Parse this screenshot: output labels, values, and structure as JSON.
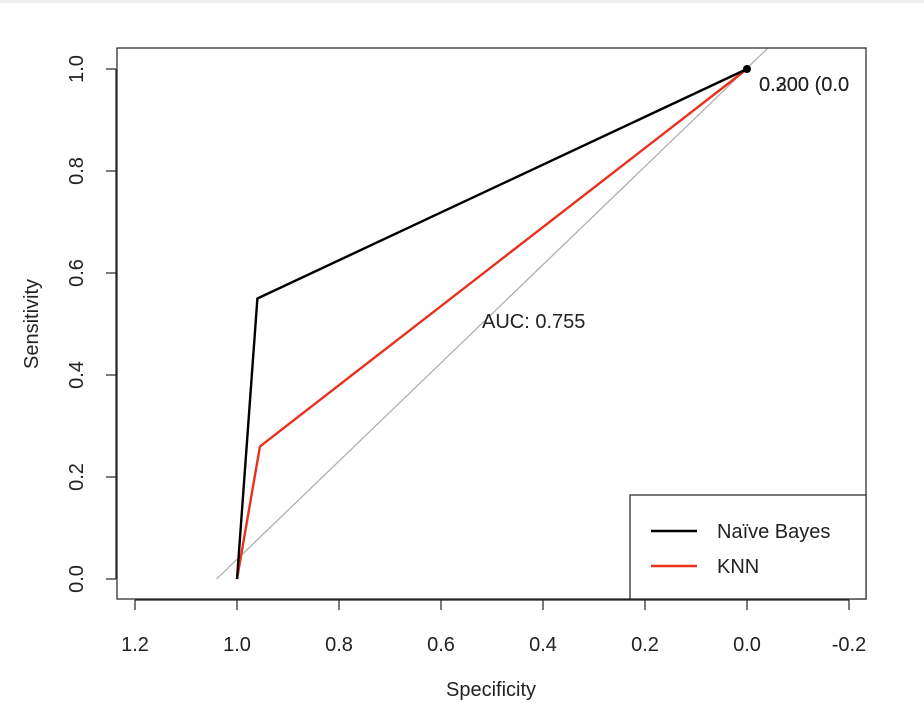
{
  "chart_data": {
    "type": "line",
    "title": "",
    "xlabel": "Specificity",
    "ylabel": "Sensitivity",
    "xlim": [
      1.2,
      -0.2
    ],
    "ylim": [
      0.0,
      1.0
    ],
    "x_reversed": true,
    "xticks": [
      1.2,
      1.0,
      0.8,
      0.6,
      0.4,
      0.2,
      0.0,
      -0.2
    ],
    "xtick_labels": [
      "1.2",
      "1.0",
      "0.8",
      "0.6",
      "0.4",
      "0.2",
      "0.0",
      "-0.2"
    ],
    "yticks": [
      0.0,
      0.2,
      0.4,
      0.6,
      0.8,
      1.0
    ],
    "ytick_labels": [
      "0.0",
      "0.2",
      "0.4",
      "0.6",
      "0.8",
      "1.0"
    ],
    "grid": false,
    "legend_position": "bottom-right",
    "series": [
      {
        "name": "Naïve Bayes",
        "color": "#000000",
        "x": [
          1.0,
          0.96,
          0.0
        ],
        "y": [
          0.0,
          0.55,
          1.0
        ]
      },
      {
        "name": "KNN",
        "color": "#e8321e",
        "x": [
          1.0,
          0.955,
          0.0
        ],
        "y": [
          0.0,
          0.26,
          1.0
        ]
      }
    ],
    "reference_line": {
      "color": "#aaaaaa",
      "from": [
        1.04,
        0.0
      ],
      "to": [
        -0.04,
        1.04
      ]
    },
    "threshold_point": {
      "x": 0.0,
      "y": 1.0,
      "labels": [
        "0.300 (0.0",
        "0.200 (0.0"
      ]
    },
    "annotations": [
      {
        "text": "AUC: 0.755",
        "x": 0.5,
        "y": 0.48
      }
    ]
  }
}
